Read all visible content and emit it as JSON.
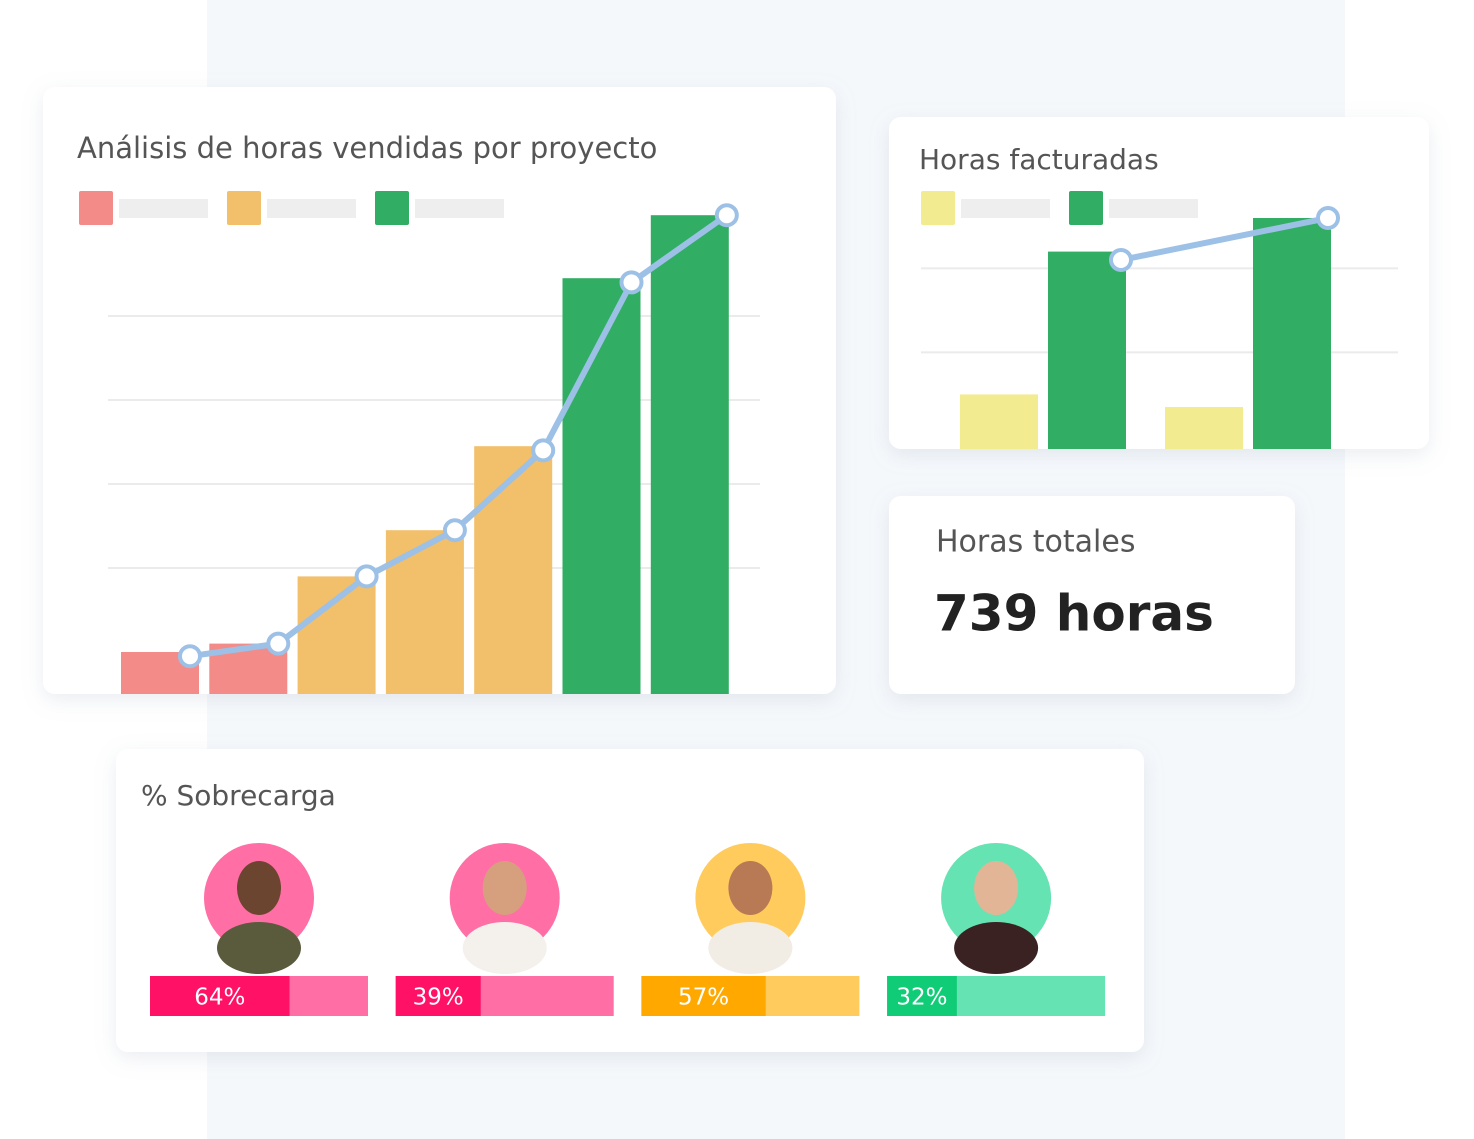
{
  "chart_data": [
    {
      "type": "bar_line",
      "title": "Análisis de horas vendidas por proyecto",
      "values": [
        10,
        12,
        28,
        39,
        59,
        99,
        114
      ],
      "bar_colors": [
        "#f38b89",
        "#f38b89",
        "#f2bf6a",
        "#f2bf6a",
        "#f2bf6a",
        "#31ad64",
        "#31ad64"
      ],
      "legend_colors": [
        "#f38b89",
        "#f2bf6a",
        "#31ad64"
      ],
      "line": {
        "color": "#9cc0e6",
        "values": [
          9,
          12,
          28,
          39,
          58,
          98,
          114
        ]
      },
      "ylim": [
        0,
        120
      ],
      "gridlines": [
        30,
        50,
        70,
        90
      ]
    },
    {
      "type": "grouped_bar_line",
      "title": "Horas facturadas",
      "series": [
        {
          "color": "#f3eb8f",
          "values": [
            13,
            10
          ]
        },
        {
          "color": "#31ad64",
          "values": [
            47,
            55
          ]
        }
      ],
      "line": {
        "color": "#9cc0e6",
        "values": [
          45,
          55
        ]
      },
      "ylim": [
        0,
        60
      ],
      "gridlines": [
        23,
        43
      ]
    }
  ],
  "total_card": {
    "title": "Horas totales",
    "value": "739 horas"
  },
  "overload": {
    "title": "% Sobrecarga",
    "values": [
      64,
      39,
      57,
      32
    ],
    "value_labels": [
      "64%",
      "39%",
      "57%",
      "32%"
    ],
    "fill_colors": [
      "#ff1166",
      "#ff1166",
      "#ffa800",
      "#11cc77"
    ],
    "track_colors": [
      "#ff6fa5",
      "#ff6fa5",
      "#ffcb5c",
      "#66e3b3"
    ]
  }
}
